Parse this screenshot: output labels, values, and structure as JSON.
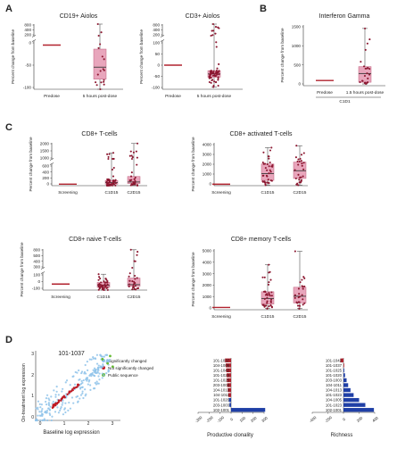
{
  "colors": {
    "box_fill": "#e8a6bc",
    "box_edge": "#c0607e",
    "point": "#8c1730",
    "median": "#3a3a3a",
    "bar_red": "#b1222e",
    "bar_blue": "#1f3fa6",
    "scatter_blue": "#8fc3ea",
    "scatter_red": "#c21a22",
    "scatter_green": "#66bb33",
    "axis": "#333333"
  },
  "panels": [
    {
      "label": "A"
    },
    {
      "label": "B"
    },
    {
      "label": "C"
    },
    {
      "label": "D"
    }
  ],
  "chart_data": [
    {
      "id": "a1",
      "type": "box",
      "panel": "A",
      "title": "CD19+ Aiolos",
      "ylabel": "Percent change from baseline",
      "categories": [
        "Predose",
        "5 hours post-dose"
      ],
      "yticks_low": [
        "0",
        "-50",
        "-100"
      ],
      "ylim_low": [
        -110,
        10
      ],
      "yticks_high": [
        "800",
        "400",
        "200"
      ],
      "ylim_high": [
        200,
        800
      ],
      "boxes": [
        {
          "min": 0,
          "q1": 0,
          "median": 0,
          "q3": 0,
          "max": 0,
          "n_points": 0
        },
        {
          "min": -110,
          "q1": -85,
          "median": -55,
          "q3": -10,
          "max": 800,
          "n_points": 18
        }
      ]
    },
    {
      "id": "a2",
      "type": "box",
      "panel": "A",
      "title": "CD3+ Aiolos",
      "ylabel": "Percent change from baseline",
      "categories": [
        "Predose",
        "5 hours post-dose"
      ],
      "yticks_low": [
        "100",
        "50",
        "0",
        "-50",
        "-100"
      ],
      "ylim_low": [
        -110,
        110
      ],
      "yticks_high": [
        "800",
        "400",
        "200"
      ],
      "ylim_high": [
        200,
        800
      ],
      "boxes": [
        {
          "min": 0,
          "q1": 0,
          "median": 0,
          "q3": 0,
          "max": 0,
          "n_points": 0
        },
        {
          "min": -100,
          "q1": -55,
          "median": -40,
          "q3": -25,
          "max": 800,
          "n_points": 60
        }
      ]
    },
    {
      "id": "b1",
      "type": "box",
      "panel": "B",
      "title": "Interferon Gamma",
      "ylabel": "Percent change from baseline",
      "categories": [
        "Predose",
        "1.5 hours post-dose"
      ],
      "group_label": "C1D1",
      "yticks_low": [
        "1500",
        "1000",
        "500",
        "0"
      ],
      "ylim_low": [
        -150,
        1600
      ],
      "boxes": [
        {
          "min": 0,
          "q1": 0,
          "median": 0,
          "q3": 0,
          "max": 0,
          "n_points": 0
        },
        {
          "min": -100,
          "q1": -50,
          "median": 200,
          "q3": 400,
          "max": 1500,
          "n_points": 22
        }
      ]
    },
    {
      "id": "c1",
      "type": "box",
      "panel": "C",
      "title": "CD8+ T-cells",
      "ylabel": "Percent change from baseline",
      "categories": [
        "Screening",
        "C1D15",
        "C2D15"
      ],
      "yticks_low": [
        "600",
        "400",
        "200",
        "0"
      ],
      "ylim_low": [
        -50,
        650
      ],
      "yticks_high": [
        "2000",
        "1500",
        "1000"
      ],
      "ylim_high": [
        850,
        2050
      ],
      "boxes": [
        {
          "min": 0,
          "q1": 0,
          "median": 0,
          "q3": 0,
          "max": 0,
          "n_points": 0
        },
        {
          "min": -60,
          "q1": 0,
          "median": 50,
          "q3": 120,
          "max": 1300,
          "n_points": 50
        },
        {
          "min": -50,
          "q1": 20,
          "median": 70,
          "q3": 250,
          "max": 2000,
          "n_points": 30
        }
      ]
    },
    {
      "id": "c2",
      "type": "box",
      "panel": "C",
      "title": "CD8+ activated T-cells",
      "ylabel": "Percent change from baseline",
      "categories": [
        "Screening",
        "C1D15",
        "C2D15"
      ],
      "yticks_low": [
        "4000",
        "3000",
        "2000",
        "1000",
        "0"
      ],
      "ylim_low": [
        -150,
        4300
      ],
      "boxes": [
        {
          "min": 0,
          "q1": 0,
          "median": 0,
          "q3": 0,
          "max": 0,
          "n_points": 0
        },
        {
          "min": -100,
          "q1": 400,
          "median": 1100,
          "q3": 2100,
          "max": 3800,
          "n_points": 40
        },
        {
          "min": -100,
          "q1": 600,
          "median": 1400,
          "q3": 2300,
          "max": 4000,
          "n_points": 28
        }
      ]
    },
    {
      "id": "c3",
      "type": "box",
      "panel": "C",
      "title": "CD8+ naive T-cells",
      "ylabel": "Percent change from baseline",
      "categories": [
        "Screening",
        "C1D15",
        "C2D15"
      ],
      "yticks_low": [
        "100",
        "0",
        "-100"
      ],
      "ylim_low": [
        -110,
        200
      ],
      "yticks_high": [
        "800",
        "500",
        "400",
        "300"
      ],
      "ylim_high": [
        300,
        820
      ],
      "boxes": [
        {
          "min": 0,
          "q1": 0,
          "median": 0,
          "q3": 0,
          "max": 0,
          "n_points": 0
        },
        {
          "min": -110,
          "q1": -60,
          "median": -25,
          "q3": 30,
          "max": 180,
          "n_points": 45
        },
        {
          "min": -100,
          "q1": -40,
          "median": -10,
          "q3": 110,
          "max": 800,
          "n_points": 28
        }
      ]
    },
    {
      "id": "c4",
      "type": "box",
      "panel": "C",
      "title": "CD8+ memory T-cells",
      "ylabel": "Percent change from baseline",
      "categories": [
        "Screening",
        "C1D15",
        "C2D15"
      ],
      "yticks_low": [
        "5000",
        "4000",
        "3000",
        "2000",
        "1000",
        "0"
      ],
      "ylim_low": [
        -200,
        5200
      ],
      "boxes": [
        {
          "min": 0,
          "q1": 0,
          "median": 0,
          "q3": 0,
          "max": 0,
          "n_points": 0
        },
        {
          "min": -100,
          "q1": 300,
          "median": 800,
          "q3": 1400,
          "max": 3800,
          "n_points": 40
        },
        {
          "min": -100,
          "q1": 400,
          "median": 1000,
          "q3": 1800,
          "max": 5000,
          "n_points": 28
        }
      ]
    },
    {
      "id": "d1",
      "type": "scatter",
      "panel": "D",
      "title": "101-1037",
      "xlabel": "Baseline log expression",
      "ylabel": "On-treatment log expression",
      "xticks": [
        "0",
        "1",
        "2",
        "3"
      ],
      "yticks": [
        "0",
        "1",
        "2",
        "3"
      ],
      "xlim": [
        0,
        3.3
      ],
      "ylim": [
        0,
        3.3
      ],
      "legend": [
        "Significantly changed",
        "Not significantly changed",
        "Public sequence"
      ]
    },
    {
      "id": "d2",
      "type": "bar",
      "panel": "D",
      "orientation": "horizontal",
      "xlabel": "Productive clonality",
      "xticks": [
        "-300",
        "-200",
        "-100",
        "0",
        "100",
        "200",
        "300"
      ],
      "xlim": [
        -300,
        300
      ],
      "categories": [
        "101-1037",
        "104-1005",
        "101-1042",
        "101-1023",
        "101-1025",
        "203-1003",
        "104-1013",
        "104-1011",
        "101-1020",
        "203-1003",
        "102-1001"
      ],
      "values": [
        -55,
        -48,
        -45,
        -40,
        -38,
        -35,
        -30,
        -25,
        -20,
        -15,
        310
      ]
    },
    {
      "id": "d3",
      "type": "bar",
      "panel": "D",
      "orientation": "horizontal",
      "xlabel": "Richness",
      "xticks": [
        "-400",
        "-200",
        "0",
        "200",
        "400"
      ],
      "xlim": [
        -400,
        400
      ],
      "categories": [
        "101-1042",
        "101-1037",
        "101-1025",
        "101-1020",
        "203-1003",
        "104-1011",
        "104-1013",
        "101-1023",
        "104-1005",
        "101-1023",
        "102-1001"
      ],
      "values": [
        -40,
        0,
        10,
        20,
        40,
        60,
        90,
        130,
        200,
        280,
        390
      ]
    }
  ]
}
